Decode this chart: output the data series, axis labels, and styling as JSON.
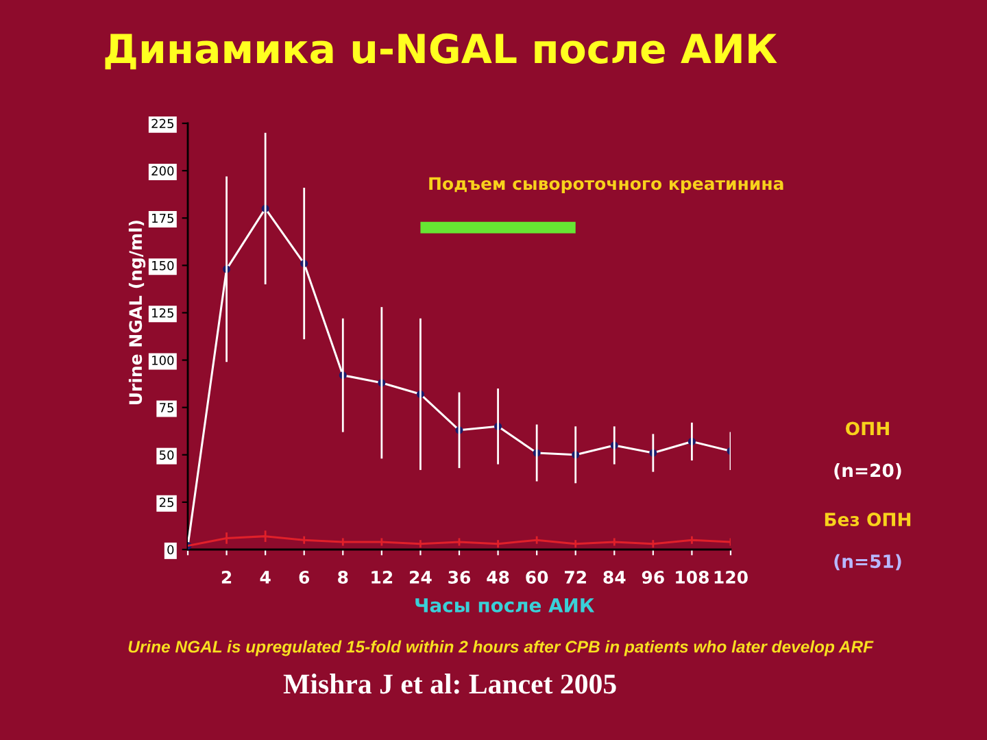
{
  "chart_data": {
    "type": "line",
    "title": "Динамика u-NGAL после АИК",
    "ylabel": "Urine NGAL (ng/ml)",
    "xlabel": "Часы после АИК",
    "categories": [
      null,
      "2",
      "4",
      "6",
      "8",
      "12",
      "24",
      "36",
      "48",
      "60",
      "72",
      "84",
      "96",
      "108",
      "120"
    ],
    "series": [
      {
        "name": "ОПН\n(n=20)",
        "color": "#ffffff",
        "values": [
          2,
          148,
          180,
          151,
          92,
          88,
          82,
          63,
          65,
          51,
          50,
          55,
          51,
          57,
          52
        ],
        "errors": [
          null,
          49,
          40,
          40,
          30,
          40,
          40,
          20,
          20,
          15,
          15,
          10,
          10,
          10,
          10
        ]
      },
      {
        "name": "Без ОПН\n(n=51)",
        "color": "#e0202a",
        "marker": "none",
        "values": [
          2,
          6,
          7,
          5,
          4,
          4,
          3,
          4,
          3,
          5,
          3,
          4,
          3,
          5,
          4
        ],
        "errors": [
          null,
          3,
          3,
          2,
          2,
          2,
          2,
          2,
          2,
          2,
          2,
          2,
          2,
          2,
          2
        ]
      },
      {
        "color": "#66e633",
        "marker": "none",
        "values": [
          null,
          null,
          null,
          null,
          null,
          null,
          170,
          170,
          170,
          170,
          170,
          null,
          null,
          null,
          null
        ]
      }
    ],
    "ylim": [
      0,
      225
    ],
    "yticks": [
      0,
      25,
      50,
      75,
      100,
      125,
      150,
      175,
      200,
      225
    ],
    "annotations": [
      "Подъем сывороточного креатинина",
      "Urine NGAL is upregulated 15-fold within 2 hours after CPB in patients who later develop ARF",
      "Mishra J et al: Lancet 2005"
    ],
    "marker": "circle",
    "line_style": "solid",
    "grid": false,
    "legend": false
  }
}
